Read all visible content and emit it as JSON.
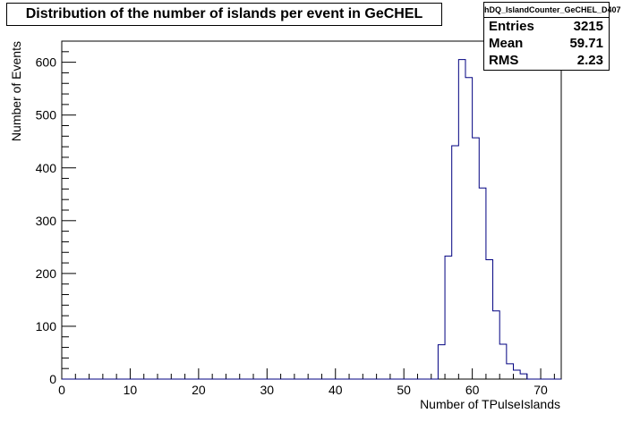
{
  "chart_data": {
    "type": "histogram",
    "title": "Distribution of the number of islands per event in GeCHEL",
    "xlabel": "Number of TPulseIslands",
    "ylabel": "Number of Events",
    "xlim": [
      0,
      73
    ],
    "ylim": [
      0,
      640
    ],
    "x_ticks": [
      0,
      10,
      20,
      30,
      40,
      50,
      60,
      70
    ],
    "y_ticks": [
      0,
      100,
      200,
      300,
      400,
      500,
      600
    ],
    "grid": false,
    "line_color": "#000080",
    "bins": [
      {
        "x0": 55,
        "x1": 56,
        "y": 65
      },
      {
        "x0": 56,
        "x1": 57,
        "y": 233
      },
      {
        "x0": 57,
        "x1": 58,
        "y": 442
      },
      {
        "x0": 58,
        "x1": 59,
        "y": 605
      },
      {
        "x0": 59,
        "x1": 60,
        "y": 571
      },
      {
        "x0": 60,
        "x1": 61,
        "y": 457
      },
      {
        "x0": 61,
        "x1": 62,
        "y": 362
      },
      {
        "x0": 62,
        "x1": 63,
        "y": 226
      },
      {
        "x0": 63,
        "x1": 64,
        "y": 129
      },
      {
        "x0": 64,
        "x1": 65,
        "y": 66
      },
      {
        "x0": 65,
        "x1": 66,
        "y": 29
      },
      {
        "x0": 66,
        "x1": 67,
        "y": 17
      },
      {
        "x0": 67,
        "x1": 68,
        "y": 10
      }
    ]
  },
  "stats": {
    "name": "hDQ_IslandCounter_GeCHEL_D407",
    "rows": [
      {
        "label": "Entries",
        "value": "3215"
      },
      {
        "label": "Mean",
        "value": "59.71"
      },
      {
        "label": "RMS",
        "value": "2.23"
      }
    ]
  }
}
